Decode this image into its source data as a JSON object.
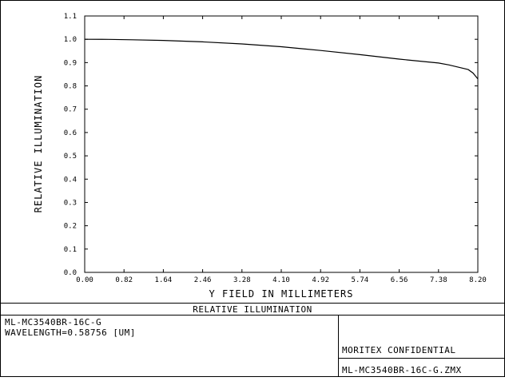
{
  "chart_data": {
    "type": "line",
    "title": "",
    "xlabel": "Y FIELD IN MILLIMETERS",
    "ylabel": "RELATIVE ILLUMINATION",
    "xlim": [
      0.0,
      8.2
    ],
    "ylim": [
      0.0,
      1.1
    ],
    "x_ticks": [
      "0.00",
      "0.82",
      "1.64",
      "2.46",
      "3.28",
      "4.10",
      "4.92",
      "5.74",
      "6.56",
      "7.38",
      "8.20"
    ],
    "y_ticks": [
      "0.0",
      "0.1",
      "0.2",
      "0.3",
      "0.4",
      "0.5",
      "0.6",
      "0.7",
      "0.8",
      "0.9",
      "1.0",
      "1.1"
    ],
    "grid": false,
    "series": [
      {
        "name": "",
        "x": [
          0.0,
          0.5,
          1.0,
          1.64,
          2.46,
          3.28,
          4.1,
          4.92,
          5.74,
          6.56,
          7.38,
          7.6,
          7.8,
          8.0,
          8.1,
          8.2
        ],
        "y": [
          1.0,
          0.9995,
          0.998,
          0.995,
          0.989,
          0.98,
          0.968,
          0.952,
          0.934,
          0.915,
          0.898,
          0.89,
          0.88,
          0.87,
          0.855,
          0.83
        ]
      }
    ]
  },
  "footer": {
    "title": "RELATIVE ILLUMINATION",
    "lens_name": "ML-MC3540BR-16C-G",
    "wavelength": "WAVELENGTH=0.58756 [UM]",
    "confidential": "MORITEX CONFIDENTIAL",
    "filename": "ML-MC3540BR-16C-G.ZMX"
  }
}
